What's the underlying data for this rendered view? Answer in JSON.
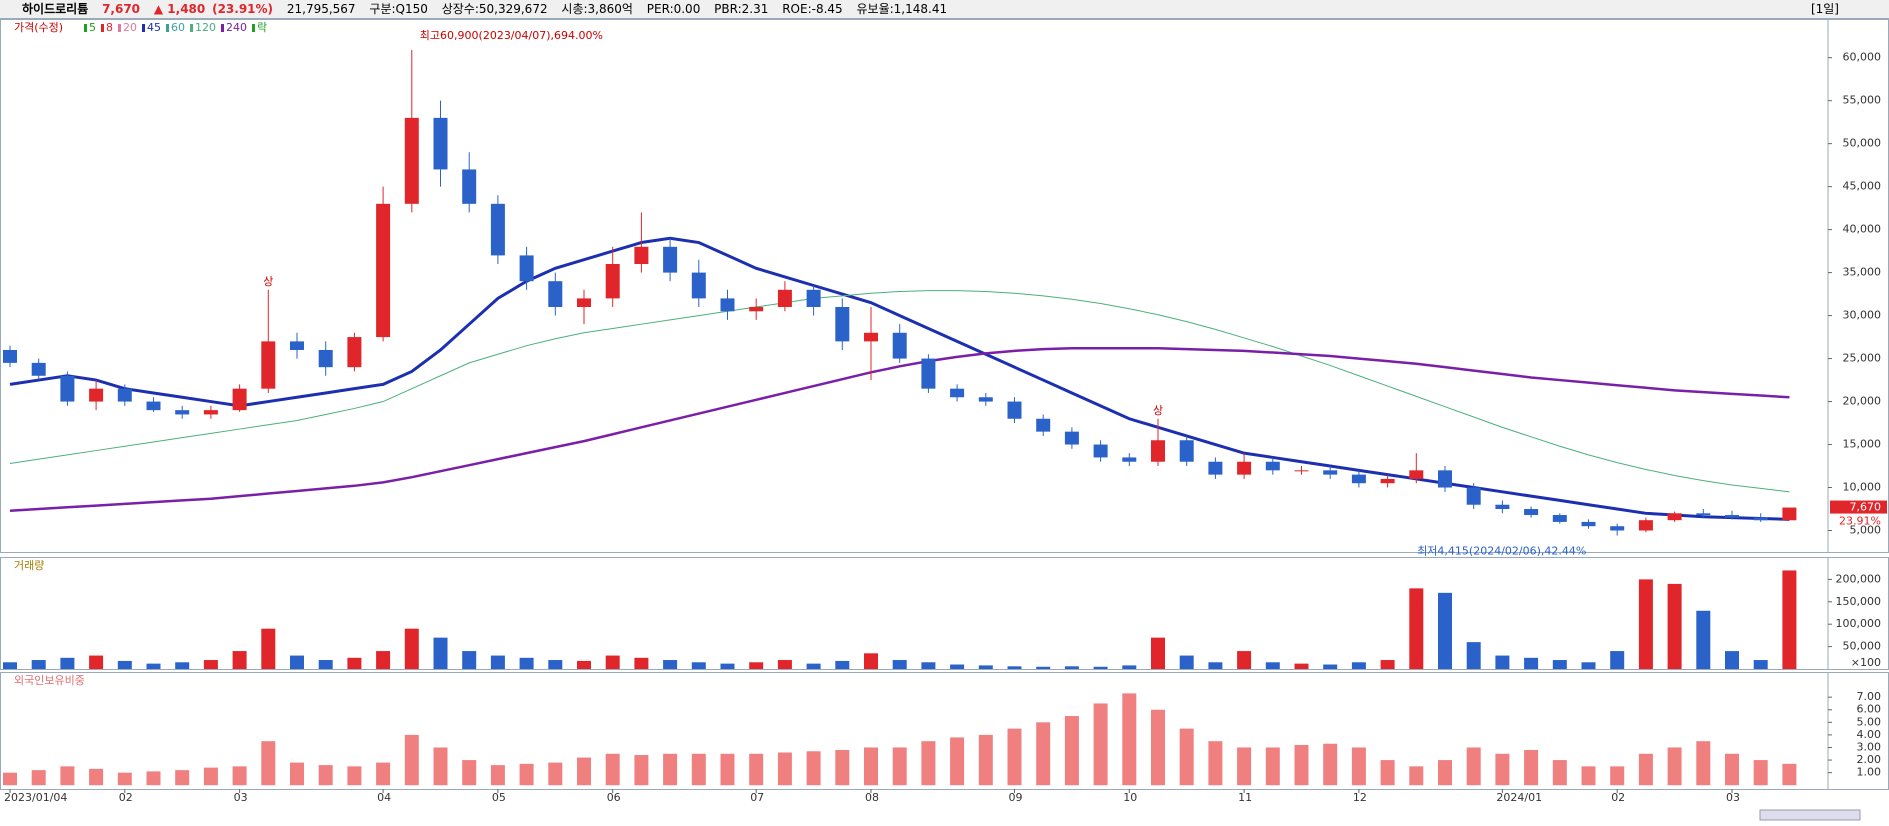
{
  "header": {
    "name": "하이드로리튬",
    "price": "7,670",
    "change": "▲ 1,480",
    "change_pct": "(23.91%)",
    "volume": "21,795,567",
    "fields": [
      "구분:Q150",
      "상장수:50,329,672",
      "시총:3,860억",
      "PER:0.00",
      "PBR:2.31",
      "ROE:-8.45",
      "유보율:1,148.41"
    ],
    "period": "[1일]"
  },
  "chart_data": [
    {
      "type": "candlestick",
      "title": "가격(수정)",
      "legend": [
        {
          "name": "5",
          "color": "#20a020"
        },
        {
          "name": "8",
          "color": "#e0262a"
        },
        {
          "name": "20",
          "color": "#e07aa0"
        },
        {
          "name": "45",
          "color": "#1c2fb0"
        },
        {
          "name": "60",
          "color": "#3aa0a0"
        },
        {
          "name": "120",
          "color": "#4caf7d"
        },
        {
          "name": "240",
          "color": "#7a1fa8"
        },
        {
          "name": "락",
          "color": "#20a020"
        }
      ],
      "up_color": "#e0262a",
      "down_color": "#2a62c9",
      "open": [
        26000,
        24500,
        23000,
        20000,
        21500,
        20000,
        19000,
        18500,
        19000,
        21500,
        27000,
        26000,
        24000,
        27500,
        43000,
        53000,
        47000,
        43000,
        37000,
        34000,
        31000,
        32000,
        36000,
        38000,
        35000,
        32000,
        30500,
        31000,
        33000,
        31000,
        27000,
        28000,
        25000,
        21500,
        20500,
        20000,
        18000,
        16500,
        15000,
        13500,
        13000,
        15500,
        13000,
        11500,
        13000,
        12000,
        12000,
        11500,
        10500,
        11000,
        12000,
        10000,
        8000,
        7500,
        6800,
        6000,
        5500,
        5000,
        6200,
        7000,
        6800,
        6500,
        6190
      ],
      "high": [
        26500,
        25000,
        23500,
        22500,
        22000,
        20500,
        19500,
        19500,
        22000,
        33000,
        28000,
        27000,
        28000,
        45000,
        60900,
        55000,
        49000,
        44000,
        38000,
        35000,
        33000,
        38000,
        42000,
        39000,
        36500,
        33000,
        32000,
        34000,
        33500,
        32000,
        31000,
        29000,
        25500,
        22000,
        21000,
        20500,
        18500,
        17000,
        15500,
        14000,
        18000,
        16000,
        13500,
        14000,
        13500,
        12500,
        12500,
        12000,
        11500,
        14000,
        12500,
        10500,
        8500,
        7800,
        7000,
        6300,
        5800,
        6500,
        7200,
        7500,
        7300,
        7000,
        7670
      ],
      "low": [
        24000,
        22500,
        19500,
        19000,
        19500,
        18800,
        18000,
        18000,
        18800,
        21000,
        25000,
        23000,
        23500,
        27000,
        42000,
        45000,
        42000,
        36000,
        33000,
        30000,
        29000,
        31000,
        35000,
        34000,
        31000,
        29500,
        29500,
        30500,
        30000,
        26000,
        22500,
        24500,
        21000,
        20000,
        19500,
        17500,
        16000,
        14500,
        13000,
        12500,
        12500,
        12500,
        11000,
        11000,
        11500,
        11500,
        11000,
        10000,
        10000,
        10500,
        9500,
        7500,
        7000,
        6500,
        5800,
        5200,
        4415,
        4800,
        6000,
        6500,
        6300,
        6000,
        6190
      ],
      "close": [
        24500,
        23000,
        20000,
        21500,
        20000,
        19000,
        18500,
        19000,
        21500,
        27000,
        26000,
        24000,
        27500,
        43000,
        53000,
        47000,
        43000,
        37000,
        34000,
        31000,
        32000,
        36000,
        38000,
        35000,
        32000,
        30500,
        31000,
        33000,
        31000,
        27000,
        28000,
        25000,
        21500,
        20500,
        20000,
        18000,
        16500,
        15000,
        13500,
        13000,
        15500,
        13000,
        11500,
        13000,
        12000,
        12000,
        11500,
        10500,
        11000,
        12000,
        10000,
        8000,
        7500,
        6800,
        6000,
        5500,
        5000,
        6200,
        7000,
        6800,
        6500,
        6190,
        7670
      ],
      "series": [
        {
          "name": "45",
          "color": "#1c2fb0",
          "width": 3,
          "values": [
            22000,
            22500,
            23000,
            22500,
            21500,
            21000,
            20500,
            20000,
            19500,
            20000,
            20500,
            21000,
            21500,
            22000,
            23500,
            26000,
            29000,
            32000,
            34000,
            35500,
            36500,
            37500,
            38500,
            39000,
            38500,
            37000,
            35500,
            34500,
            33500,
            32500,
            31500,
            30000,
            28500,
            27000,
            25500,
            24000,
            22500,
            21000,
            19500,
            18000,
            17000,
            16000,
            15000,
            14000,
            13500,
            13000,
            12500,
            12000,
            11500,
            11000,
            10500,
            10000,
            9500,
            9000,
            8500,
            8000,
            7500,
            7000,
            6800,
            6600,
            6500,
            6400,
            6300
          ]
        },
        {
          "name": "120",
          "color": "#4caf7d",
          "width": 1,
          "values": [
            12800,
            13300,
            13800,
            14300,
            14800,
            15300,
            15800,
            16300,
            16800,
            17300,
            17800,
            18500,
            19200,
            20000,
            21500,
            23000,
            24500,
            25500,
            26500,
            27300,
            28000,
            28500,
            29000,
            29500,
            30000,
            30500,
            31000,
            31500,
            32000,
            32300,
            32600,
            32800,
            32900,
            32900,
            32800,
            32600,
            32300,
            31900,
            31400,
            30800,
            30100,
            29300,
            28400,
            27400,
            26400,
            25300,
            24200,
            23000,
            21800,
            20600,
            19400,
            18200,
            17000,
            15900,
            14800,
            13800,
            12900,
            12100,
            11400,
            10800,
            10300,
            9900,
            9500
          ]
        },
        {
          "name": "240",
          "color": "#7a1fa8",
          "width": 2.5,
          "values": [
            7300,
            7500,
            7700,
            7900,
            8100,
            8300,
            8500,
            8700,
            9000,
            9300,
            9600,
            9900,
            10200,
            10600,
            11200,
            11900,
            12600,
            13300,
            14000,
            14700,
            15400,
            16200,
            17000,
            17800,
            18600,
            19400,
            20200,
            21000,
            21800,
            22600,
            23400,
            24100,
            24700,
            25200,
            25600,
            25900,
            26100,
            26200,
            26200,
            26200,
            26200,
            26100,
            26000,
            25900,
            25700,
            25500,
            25300,
            25000,
            24700,
            24400,
            24000,
            23600,
            23200,
            22800,
            22500,
            22200,
            21900,
            21600,
            21300,
            21100,
            20900,
            20700,
            20500
          ]
        }
      ],
      "annotations": [
        "최고60,900(2023/04/07),694.00%",
        "최저4,415(2024/02/06),42.44%"
      ],
      "limit_up_marks": [
        "상",
        "상"
      ],
      "last_label": "7,670",
      "last_change": "23.91%",
      "ylim": [
        2500,
        64500
      ],
      "yticks": [
        {
          "value": 5000,
          "label": "5,000"
        },
        {
          "value": 10000,
          "label": "10,000"
        },
        {
          "value": 15000,
          "label": "15,000"
        },
        {
          "value": 20000,
          "label": "20,000"
        },
        {
          "value": 25000,
          "label": "25,000"
        },
        {
          "value": 30000,
          "label": "30,000"
        },
        {
          "value": 35000,
          "label": "35,000"
        },
        {
          "value": 40000,
          "label": "40,000"
        },
        {
          "value": 45000,
          "label": "45,000"
        },
        {
          "value": 50000,
          "label": "50,000"
        },
        {
          "value": 55000,
          "label": "55,000"
        },
        {
          "value": 60000,
          "label": "60,000"
        }
      ]
    },
    {
      "type": "bar",
      "title": "거래량",
      "unit": "×100",
      "values": [
        15000,
        20000,
        25000,
        30000,
        18000,
        12000,
        15000,
        20000,
        40000,
        90000,
        30000,
        20000,
        25000,
        40000,
        90000,
        70000,
        40000,
        30000,
        25000,
        20000,
        18000,
        30000,
        25000,
        20000,
        15000,
        12000,
        15000,
        20000,
        12000,
        18000,
        35000,
        20000,
        15000,
        10000,
        8000,
        6000,
        5000,
        6000,
        5000,
        8000,
        70000,
        30000,
        15000,
        40000,
        15000,
        12000,
        10000,
        15000,
        20000,
        180000,
        170000,
        60000,
        30000,
        25000,
        20000,
        15000,
        40000,
        200000,
        190000,
        130000,
        40000,
        20000,
        220000
      ],
      "ylim": [
        0,
        250000
      ],
      "yticks": [
        {
          "value": 50000,
          "label": "50,000"
        },
        {
          "value": 100000,
          "label": "100,000"
        },
        {
          "value": 150000,
          "label": "150,000"
        },
        {
          "value": 200000,
          "label": "200,000"
        }
      ]
    },
    {
      "type": "bar",
      "title": "외국인보유비중",
      "color": "#f08080",
      "values": [
        1.0,
        1.2,
        1.5,
        1.3,
        1.0,
        1.1,
        1.2,
        1.4,
        1.5,
        3.5,
        1.8,
        1.6,
        1.5,
        1.8,
        4.0,
        3.0,
        2.0,
        1.6,
        1.7,
        1.8,
        2.2,
        2.5,
        2.4,
        2.5,
        2.5,
        2.5,
        2.5,
        2.6,
        2.7,
        2.8,
        3.0,
        3.0,
        3.5,
        3.8,
        4.0,
        4.5,
        5.0,
        5.5,
        6.5,
        7.3,
        6.0,
        4.5,
        3.5,
        3.0,
        3.0,
        3.2,
        3.3,
        3.0,
        2.0,
        1.5,
        2.0,
        3.0,
        2.5,
        2.8,
        2.0,
        1.5,
        1.5,
        2.5,
        3.0,
        3.5,
        2.5,
        2.0,
        1.7
      ],
      "categories": [
        "2023/01/04",
        null,
        null,
        null,
        "02",
        null,
        null,
        null,
        "03",
        null,
        null,
        null,
        null,
        "04",
        null,
        null,
        null,
        "05",
        null,
        null,
        null,
        "06",
        null,
        null,
        null,
        null,
        "07",
        null,
        null,
        null,
        "08",
        null,
        null,
        null,
        null,
        "09",
        null,
        null,
        null,
        "10",
        null,
        null,
        null,
        "11",
        null,
        null,
        null,
        "12",
        null,
        null,
        null,
        null,
        "2024/01",
        null,
        null,
        null,
        "02",
        null,
        null,
        null,
        "03",
        null,
        null
      ],
      "ylim": [
        -0.3,
        9
      ],
      "yticks": [
        {
          "value": 1,
          "label": "1.00"
        },
        {
          "value": 2,
          "label": "2.00"
        },
        {
          "value": 3,
          "label": "3.00"
        },
        {
          "value": 4,
          "label": "4.00"
        },
        {
          "value": 5,
          "label": "5.00"
        },
        {
          "value": 6,
          "label": "6.00"
        },
        {
          "value": 7,
          "label": "7.00"
        }
      ]
    }
  ]
}
